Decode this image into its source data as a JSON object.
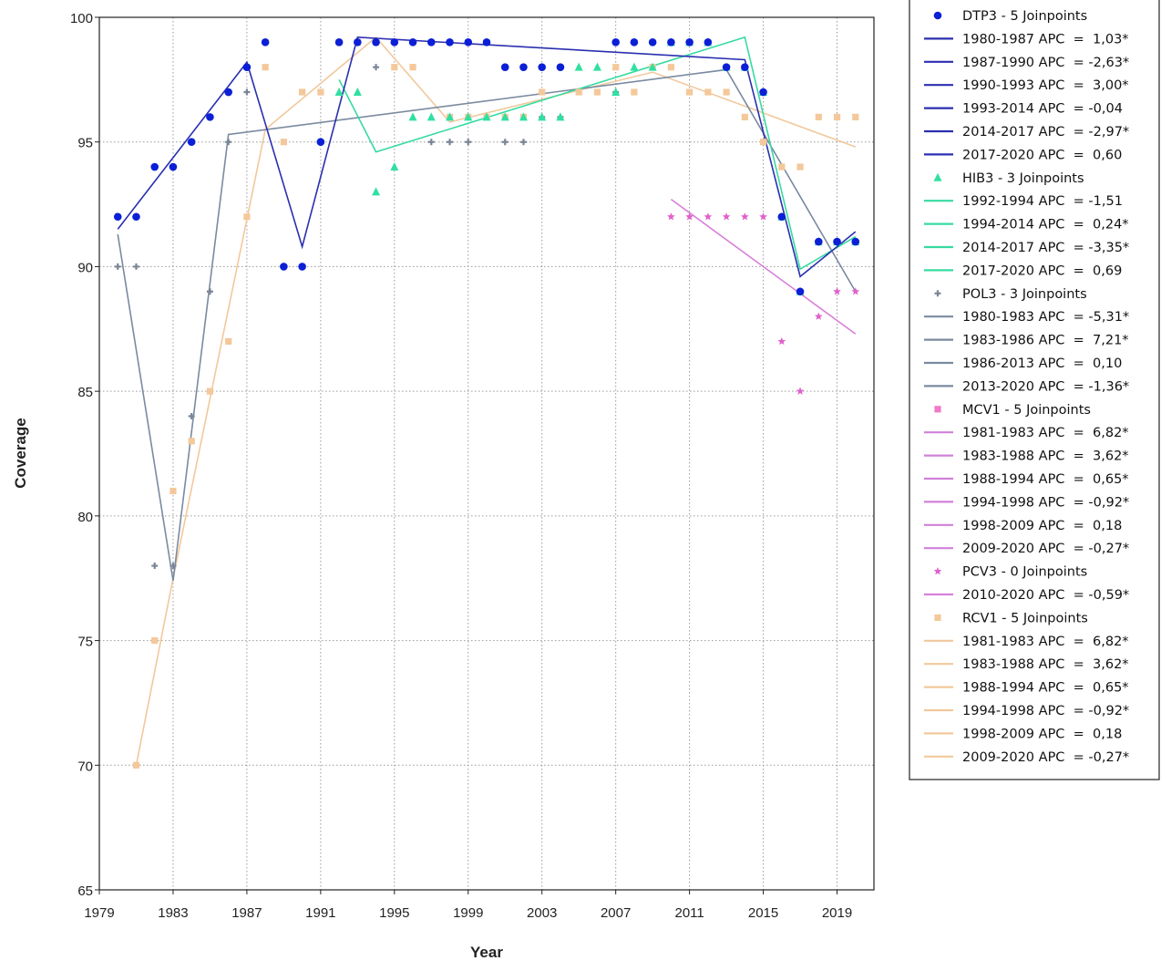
{
  "chart_data": {
    "type": "scatter",
    "title": "",
    "xlabel": "Year",
    "ylabel": "Coverage",
    "xlim": [
      1979,
      2021
    ],
    "ylim": [
      65,
      100
    ],
    "xticks": [
      1979,
      1983,
      1987,
      1991,
      1995,
      1999,
      2003,
      2007,
      2011,
      2015,
      2019
    ],
    "yticks": [
      65,
      70,
      75,
      80,
      85,
      90,
      95,
      100
    ],
    "grid": true,
    "legend_position": "right",
    "series": [
      {
        "name": "DTP3 - 5 Joinpoints",
        "marker": "circle",
        "color": "#0b1fd6",
        "line_color": "#2b2fb0",
        "points": [
          [
            1980,
            92
          ],
          [
            1981,
            92
          ],
          [
            1982,
            94
          ],
          [
            1983,
            94
          ],
          [
            1984,
            95
          ],
          [
            1985,
            96
          ],
          [
            1986,
            97
          ],
          [
            1987,
            98
          ],
          [
            1988,
            99
          ],
          [
            1989,
            90
          ],
          [
            1990,
            90
          ],
          [
            1991,
            95
          ],
          [
            1992,
            99
          ],
          [
            1993,
            99
          ],
          [
            1994,
            99
          ],
          [
            1995,
            99
          ],
          [
            1996,
            99
          ],
          [
            1997,
            99
          ],
          [
            1998,
            99
          ],
          [
            1999,
            99
          ],
          [
            2000,
            99
          ],
          [
            2001,
            98
          ],
          [
            2002,
            98
          ],
          [
            2003,
            98
          ],
          [
            2004,
            98
          ],
          [
            2007,
            99
          ],
          [
            2008,
            99
          ],
          [
            2009,
            99
          ],
          [
            2010,
            99
          ],
          [
            2011,
            99
          ],
          [
            2012,
            99
          ],
          [
            2013,
            98
          ],
          [
            2014,
            98
          ],
          [
            2015,
            97
          ],
          [
            2016,
            92
          ],
          [
            2017,
            89
          ],
          [
            2018,
            91
          ],
          [
            2019,
            91
          ],
          [
            2020,
            91
          ]
        ],
        "fit": [
          [
            1980,
            91.5
          ],
          [
            1987,
            98.2
          ],
          [
            1990,
            90.8
          ],
          [
            1993,
            99.2
          ],
          [
            2014,
            98.3
          ],
          [
            2017,
            89.6
          ],
          [
            2020,
            91.4
          ]
        ],
        "segments": [
          {
            "label": "1980-1987 APC  =  1,03*"
          },
          {
            "label": "1987-1990 APC  = -2,63*"
          },
          {
            "label": "1990-1993 APC  =  3,00*"
          },
          {
            "label": "1993-2014 APC  = -0,04"
          },
          {
            "label": "2014-2017 APC  = -2,97*"
          },
          {
            "label": "2017-2020 APC  =  0,60"
          }
        ]
      },
      {
        "name": "HIB3 - 3 Joinpoints",
        "marker": "triangle",
        "color": "#2fe0a0",
        "line_color": "#36dba0",
        "points": [
          [
            1992,
            97
          ],
          [
            1993,
            97
          ],
          [
            1994,
            93
          ],
          [
            1995,
            94
          ],
          [
            1996,
            96
          ],
          [
            1997,
            96
          ],
          [
            1998,
            96
          ],
          [
            1999,
            96
          ],
          [
            2000,
            96
          ],
          [
            2001,
            96
          ],
          [
            2002,
            96
          ],
          [
            2003,
            96
          ],
          [
            2004,
            96
          ],
          [
            2005,
            98
          ],
          [
            2006,
            98
          ],
          [
            2007,
            97
          ],
          [
            2008,
            98
          ],
          [
            2009,
            98
          ],
          [
            2010,
            99
          ],
          [
            2011,
            99
          ],
          [
            2012,
            99
          ],
          [
            2013,
            98
          ],
          [
            2014,
            98
          ],
          [
            2015,
            97
          ],
          [
            2016,
            92
          ],
          [
            2017,
            89
          ],
          [
            2018,
            91
          ],
          [
            2019,
            91
          ],
          [
            2020,
            91
          ]
        ],
        "fit": [
          [
            1992,
            97.5
          ],
          [
            1994,
            94.6
          ],
          [
            2014,
            99.2
          ],
          [
            2017,
            89.9
          ],
          [
            2020,
            91.2
          ]
        ],
        "segments": [
          {
            "label": "1992-1994 APC  = -1,51"
          },
          {
            "label": "1994-2014 APC  =  0,24*"
          },
          {
            "label": "2014-2017 APC  = -3,35*"
          },
          {
            "label": "2017-2020 APC  =  0,69"
          }
        ]
      },
      {
        "name": "POL3 - 3 Joinpoints",
        "marker": "plus",
        "color": "#7a8696",
        "line_color": "#7a8aa0",
        "points": [
          [
            1980,
            90
          ],
          [
            1981,
            90
          ],
          [
            1982,
            78
          ],
          [
            1983,
            78
          ],
          [
            1984,
            84
          ],
          [
            1985,
            89
          ],
          [
            1986,
            95
          ],
          [
            1987,
            97
          ],
          [
            1988,
            99
          ],
          [
            1989,
            90
          ],
          [
            1990,
            90
          ],
          [
            1992,
            99
          ],
          [
            1993,
            99
          ],
          [
            1994,
            98
          ],
          [
            1997,
            95
          ],
          [
            1998,
            95
          ],
          [
            1999,
            95
          ],
          [
            2001,
            95
          ],
          [
            2002,
            95
          ],
          [
            2003,
            96
          ],
          [
            2004,
            96
          ],
          [
            2007,
            97
          ],
          [
            2013,
            98
          ],
          [
            2014,
            98
          ],
          [
            2016,
            92
          ],
          [
            2017,
            89
          ],
          [
            2018,
            91
          ],
          [
            2019,
            91
          ],
          [
            2020,
            91
          ]
        ],
        "fit": [
          [
            1980,
            91.3
          ],
          [
            1983,
            77.4
          ],
          [
            1986,
            95.3
          ],
          [
            2013,
            97.9
          ],
          [
            2020,
            89.0
          ]
        ],
        "segments": [
          {
            "label": "1980-1983 APC  = -5,31*"
          },
          {
            "label": "1983-1986 APC  =  7,21*"
          },
          {
            "label": "1986-2013 APC  =  0,10"
          },
          {
            "label": "2013-2020 APC  = -1,36*"
          }
        ]
      },
      {
        "name": "MCV1 - 5 Joinpoints",
        "marker": "square",
        "color": "#f07ac8",
        "line_color": "#d080d8",
        "points": [],
        "fit": [],
        "segments": [
          {
            "label": "1981-1983 APC  =  6,82*"
          },
          {
            "label": "1983-1988 APC  =  3,62*"
          },
          {
            "label": "1988-1994 APC  =  0,65*"
          },
          {
            "label": "1994-1998 APC  = -0,92*"
          },
          {
            "label": "1998-2009 APC  =  0,18"
          },
          {
            "label": "2009-2020 APC  = -0,27*"
          }
        ]
      },
      {
        "name": "PCV3 - 0 Joinpoints",
        "marker": "star",
        "color": "#e060cc",
        "line_color": "#d77fd9",
        "points": [
          [
            2010,
            92
          ],
          [
            2011,
            92
          ],
          [
            2012,
            92
          ],
          [
            2013,
            92
          ],
          [
            2014,
            92
          ],
          [
            2015,
            92
          ],
          [
            2016,
            87
          ],
          [
            2017,
            85
          ],
          [
            2018,
            88
          ],
          [
            2019,
            89
          ],
          [
            2020,
            89
          ]
        ],
        "fit": [
          [
            2010,
            92.7
          ],
          [
            2020,
            87.3
          ]
        ],
        "segments": [
          {
            "label": "2010-2020 APC  = -0,59*"
          }
        ]
      },
      {
        "name": "RCV1 - 5 Joinpoints",
        "marker": "square",
        "color": "#f4c89a",
        "line_color": "#f2c89c",
        "points": [
          [
            1981,
            70
          ],
          [
            1982,
            75
          ],
          [
            1983,
            81
          ],
          [
            1984,
            83
          ],
          [
            1985,
            85
          ],
          [
            1986,
            87
          ],
          [
            1987,
            92
          ],
          [
            1988,
            98
          ],
          [
            1989,
            95
          ],
          [
            1990,
            97
          ],
          [
            1991,
            97
          ],
          [
            1992,
            99
          ],
          [
            1993,
            99
          ],
          [
            1994,
            99
          ],
          [
            1995,
            98
          ],
          [
            1996,
            98
          ],
          [
            1998,
            96
          ],
          [
            1999,
            96
          ],
          [
            2000,
            96
          ],
          [
            2001,
            96
          ],
          [
            2002,
            96
          ],
          [
            2003,
            97
          ],
          [
            2005,
            97
          ],
          [
            2006,
            97
          ],
          [
            2007,
            98
          ],
          [
            2008,
            97
          ],
          [
            2009,
            98
          ],
          [
            2010,
            98
          ],
          [
            2011,
            97
          ],
          [
            2012,
            97
          ],
          [
            2013,
            97
          ],
          [
            2014,
            96
          ],
          [
            2015,
            95
          ],
          [
            2016,
            94
          ],
          [
            2017,
            94
          ],
          [
            2018,
            96
          ],
          [
            2019,
            96
          ],
          [
            2020,
            96
          ]
        ],
        "fit": [
          [
            1981,
            70
          ],
          [
            1983,
            77.5
          ],
          [
            1988,
            95.5
          ],
          [
            1994,
            99.2
          ],
          [
            1998,
            95.8
          ],
          [
            2009,
            97.8
          ],
          [
            2020,
            94.8
          ]
        ],
        "segments": [
          {
            "label": "1981-1983 APC  =  6,82*"
          },
          {
            "label": "1983-1988 APC  =  3,62*"
          },
          {
            "label": "1988-1994 APC  =  0,65*"
          },
          {
            "label": "1994-1998 APC  = -0,92*"
          },
          {
            "label": "1998-2009 APC  =  0,18"
          },
          {
            "label": "2009-2020 APC  = -0,27*"
          }
        ]
      }
    ]
  }
}
